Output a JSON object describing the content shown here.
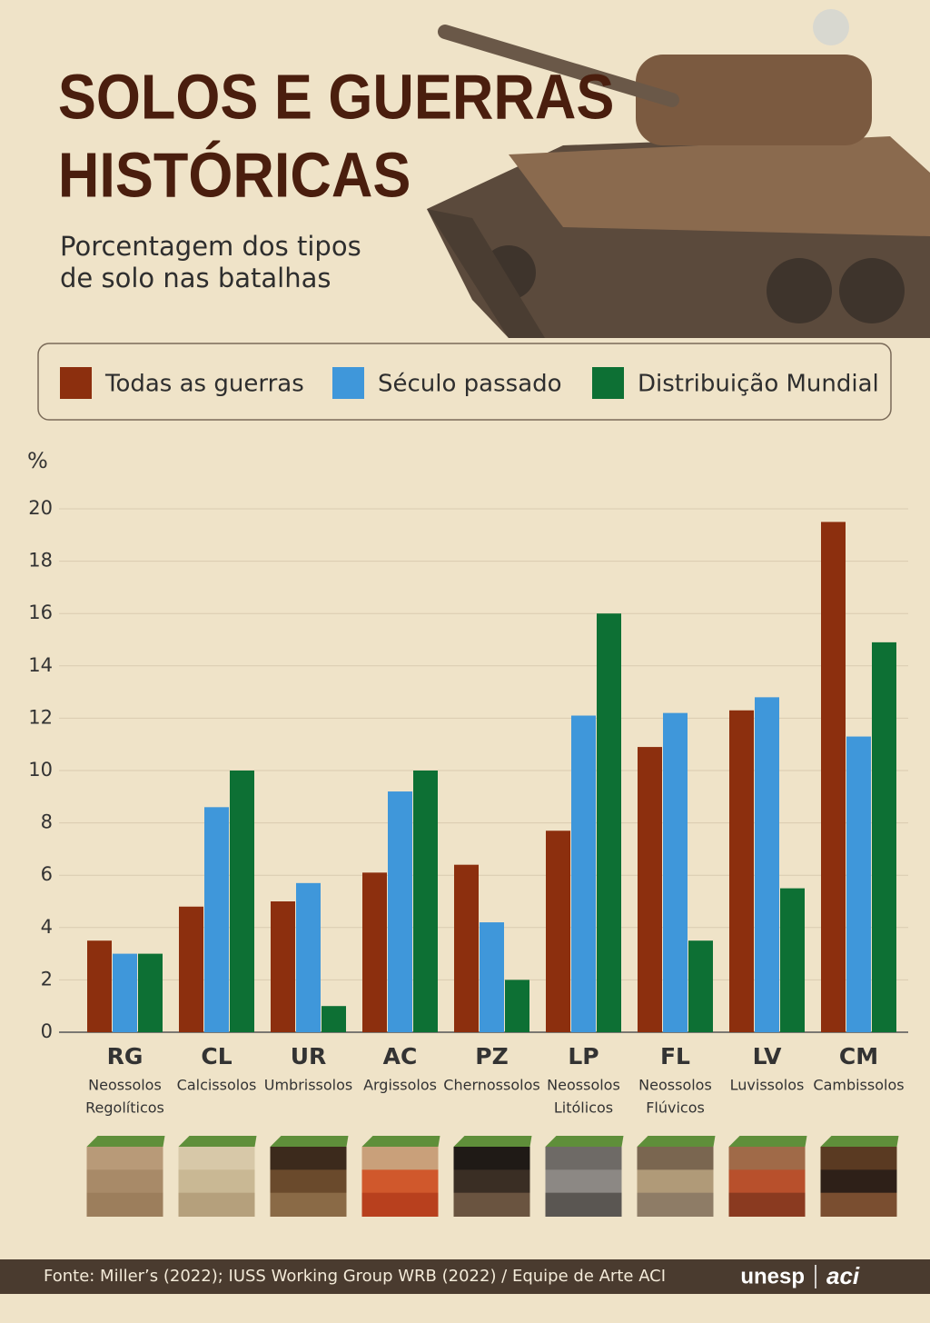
{
  "chart_data": {
    "type": "bar",
    "title_lines": [
      "SOLOS E GUERRAS",
      "HISTÓRICAS"
    ],
    "subtitle_lines": [
      "Porcentagem dos tipos",
      "de solo nas batalhas"
    ],
    "y_label": "%",
    "categories": [
      "RG",
      "CL",
      "UR",
      "AC",
      "PZ",
      "LP",
      "FL",
      "LV",
      "CM"
    ],
    "category_names": [
      [
        "Neossolos",
        "Regolíticos"
      ],
      [
        "Calcissolos"
      ],
      [
        "Umbrissolos"
      ],
      [
        "Argissolos"
      ],
      [
        "Chernossolos"
      ],
      [
        "Neossolos",
        "Litólicos"
      ],
      [
        "Neossolos",
        "Flúvicos"
      ],
      [
        "Luvissolos"
      ],
      [
        "Cambissolos"
      ]
    ],
    "series": [
      {
        "name": "Todas as guerras",
        "color": "#8c2f0e",
        "values": [
          3.5,
          4.8,
          5.0,
          6.1,
          6.4,
          7.7,
          10.9,
          12.3,
          19.5
        ]
      },
      {
        "name": "Século passado",
        "color": "#3f97da",
        "values": [
          3.0,
          8.6,
          5.7,
          9.2,
          4.2,
          12.1,
          12.2,
          12.8,
          11.3
        ]
      },
      {
        "name": "Distribuição Mundial",
        "color": "#0d7034",
        "values": [
          3.0,
          10.0,
          1.0,
          10.0,
          2.0,
          16.0,
          3.5,
          5.5,
          14.9
        ]
      }
    ],
    "ylim": [
      0,
      20
    ],
    "yticks": [
      0,
      2,
      4,
      6,
      8,
      10,
      12,
      14,
      16,
      18,
      20
    ],
    "grid": true,
    "legend": "top",
    "source": "Fonte: Miller’s (2022); IUSS Working Group WRB (2022) / Equipe de Arte ACI",
    "logos": [
      "unesp",
      "aci"
    ]
  }
}
